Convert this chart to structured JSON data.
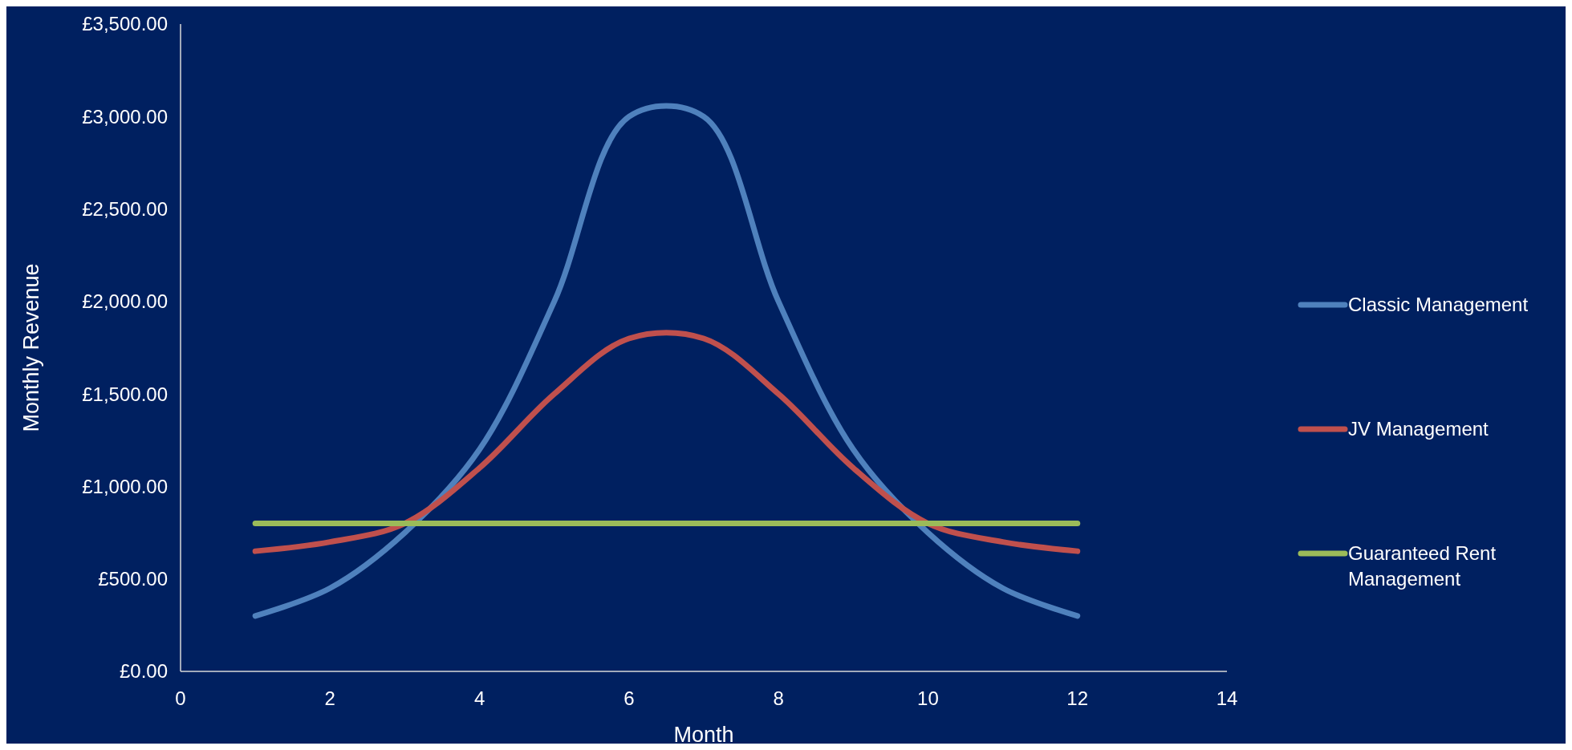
{
  "chart_data": {
    "type": "line",
    "xlabel": "Month",
    "ylabel": "Monthly Revenue",
    "x": [
      1,
      2,
      3,
      4,
      5,
      6,
      7,
      8,
      9,
      10,
      11,
      12
    ],
    "series": [
      {
        "name": "Classic Management",
        "color": "#4f81bd",
        "values": [
          300,
          450,
          750,
          1200,
          2000,
          3000,
          3000,
          2000,
          1200,
          750,
          450,
          300
        ]
      },
      {
        "name": "JV Management",
        "color": "#c0504d",
        "values": [
          650,
          700,
          800,
          1100,
          1500,
          1800,
          1800,
          1500,
          1100,
          800,
          700,
          650
        ]
      },
      {
        "name": "Guaranteed Rent Management",
        "color": "#9bbb59",
        "values": [
          800,
          800,
          800,
          800,
          800,
          800,
          800,
          800,
          800,
          800,
          800,
          800
        ]
      }
    ],
    "xlim": [
      0,
      14
    ],
    "xticks": [
      0,
      2,
      4,
      6,
      8,
      10,
      12,
      14
    ],
    "ylim": [
      0,
      3500
    ],
    "yticks": [
      {
        "value": 0,
        "label": "£0.00"
      },
      {
        "value": 500,
        "label": "£500.00"
      },
      {
        "value": 1000,
        "label": "£1,000.00"
      },
      {
        "value": 1500,
        "label": "£1,500.00"
      },
      {
        "value": 2000,
        "label": "£2,000.00"
      },
      {
        "value": 2500,
        "label": "£2,500.00"
      },
      {
        "value": 3000,
        "label": "£3,000.00"
      },
      {
        "value": 3500,
        "label": "£3,500.00"
      }
    ],
    "legend": "right",
    "marker": "none",
    "line_style": "solid",
    "grid": false
  }
}
